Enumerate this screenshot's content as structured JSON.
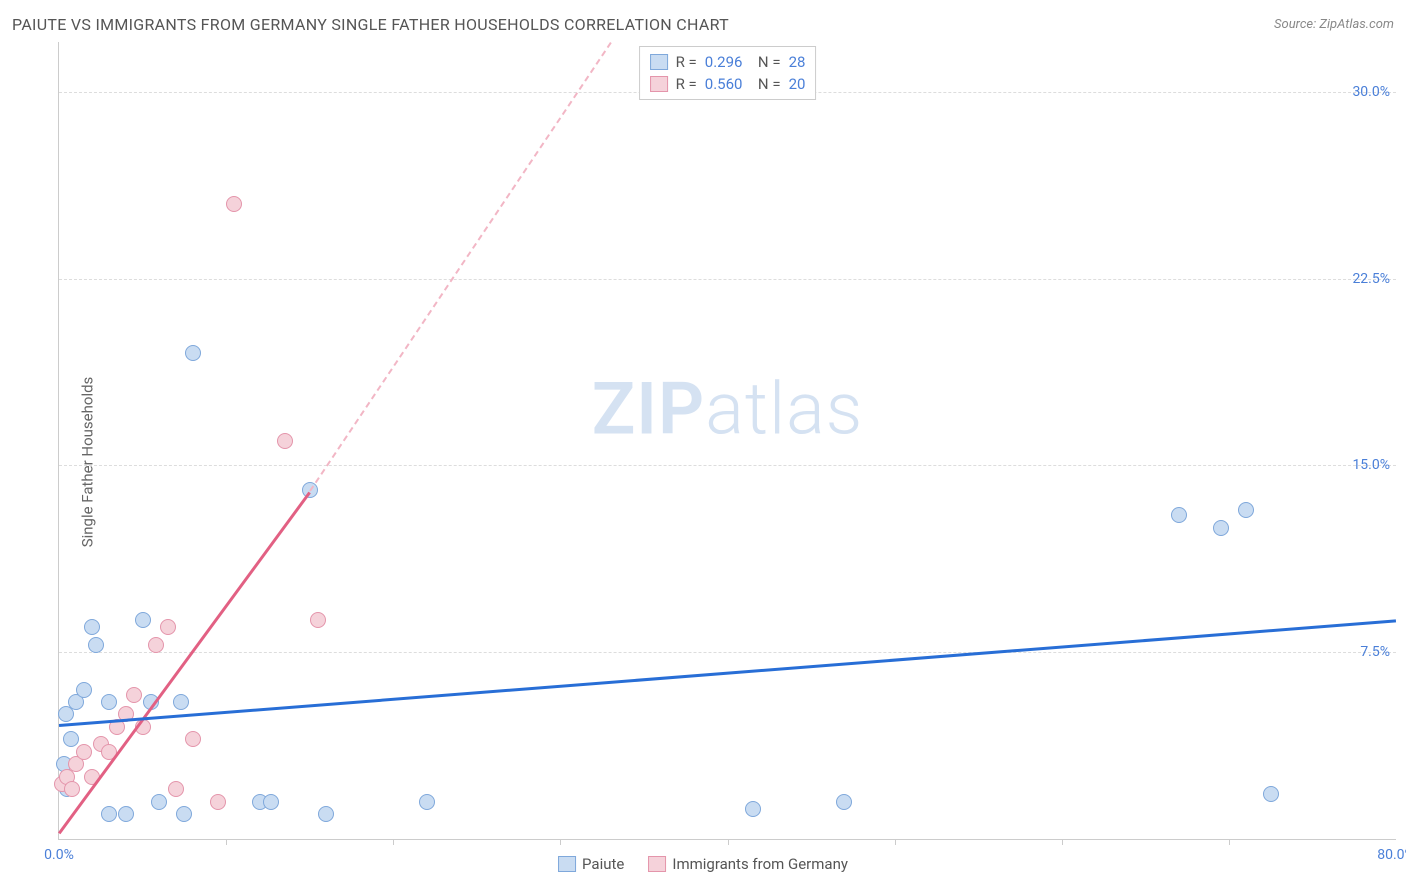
{
  "header": {
    "title": "PAIUTE VS IMMIGRANTS FROM GERMANY SINGLE FATHER HOUSEHOLDS CORRELATION CHART",
    "source": "Source: ZipAtlas.com"
  },
  "chart": {
    "type": "scatter",
    "ylabel": "Single Father Households",
    "xlim": [
      0,
      80
    ],
    "ylim": [
      0,
      32
    ],
    "x_ticks": [
      {
        "pos": 0,
        "label": "0.0%"
      },
      {
        "pos": 80,
        "label": "80.0%"
      }
    ],
    "x_tickmarks": [
      10,
      20,
      30,
      40,
      50,
      60,
      70
    ],
    "y_gridlines": [
      7.5,
      15.0,
      22.5,
      30.0
    ],
    "y_ticks": [
      {
        "pos": 7.5,
        "label": "7.5%"
      },
      {
        "pos": 15.0,
        "label": "15.0%"
      },
      {
        "pos": 22.5,
        "label": "22.5%"
      },
      {
        "pos": 30.0,
        "label": "30.0%"
      }
    ],
    "tick_color": "#4a7fd8",
    "tick_fontsize": 14,
    "grid_color": "#dddddd",
    "axis_color": "#cccccc",
    "background_color": "#ffffff",
    "point_radius": 8,
    "series": [
      {
        "name": "Paiute",
        "fill": "#c9dcf2",
        "stroke": "#7fa8db",
        "R": "0.296",
        "N": "28",
        "trend": {
          "x1": 0,
          "y1": 4.6,
          "x2": 80,
          "y2": 8.8,
          "color": "#286ed6",
          "width": 2.5,
          "dashed": false
        },
        "points": [
          {
            "x": 0.3,
            "y": 3.0
          },
          {
            "x": 0.5,
            "y": 2.0
          },
          {
            "x": 0.4,
            "y": 5.0
          },
          {
            "x": 0.7,
            "y": 4.0
          },
          {
            "x": 1.0,
            "y": 5.5
          },
          {
            "x": 1.5,
            "y": 6.0
          },
          {
            "x": 2.0,
            "y": 8.5
          },
          {
            "x": 2.2,
            "y": 7.8
          },
          {
            "x": 3.0,
            "y": 5.5
          },
          {
            "x": 3.0,
            "y": 1.0
          },
          {
            "x": 4.0,
            "y": 1.0
          },
          {
            "x": 5.0,
            "y": 8.8
          },
          {
            "x": 5.5,
            "y": 5.5
          },
          {
            "x": 6.0,
            "y": 1.5
          },
          {
            "x": 7.5,
            "y": 1.0
          },
          {
            "x": 7.3,
            "y": 5.5
          },
          {
            "x": 8.0,
            "y": 19.5
          },
          {
            "x": 12.0,
            "y": 1.5
          },
          {
            "x": 12.7,
            "y": 1.5
          },
          {
            "x": 15.0,
            "y": 14.0
          },
          {
            "x": 16.0,
            "y": 1.0
          },
          {
            "x": 22.0,
            "y": 1.5
          },
          {
            "x": 41.5,
            "y": 1.2
          },
          {
            "x": 47.0,
            "y": 1.5
          },
          {
            "x": 67.0,
            "y": 13.0
          },
          {
            "x": 69.5,
            "y": 12.5
          },
          {
            "x": 71.0,
            "y": 13.2
          },
          {
            "x": 72.5,
            "y": 1.8
          }
        ]
      },
      {
        "name": "Immigrants from Germany",
        "fill": "#f5d2da",
        "stroke": "#e495ab",
        "R": "0.560",
        "N": "20",
        "trend_solid": {
          "x1": 0,
          "y1": 0.3,
          "x2": 15,
          "y2": 14.0,
          "color": "#e26083",
          "width": 2.5
        },
        "trend_dashed": {
          "x1": 15,
          "y1": 14.0,
          "x2": 33,
          "y2": 32.0,
          "color": "#f2b6c5",
          "width": 2
        },
        "points": [
          {
            "x": 0.2,
            "y": 2.2
          },
          {
            "x": 0.5,
            "y": 2.5
          },
          {
            "x": 0.8,
            "y": 2.0
          },
          {
            "x": 1.0,
            "y": 3.0
          },
          {
            "x": 1.5,
            "y": 3.5
          },
          {
            "x": 2.0,
            "y": 2.5
          },
          {
            "x": 2.5,
            "y": 3.8
          },
          {
            "x": 3.0,
            "y": 3.5
          },
          {
            "x": 3.5,
            "y": 4.5
          },
          {
            "x": 4.0,
            "y": 5.0
          },
          {
            "x": 4.5,
            "y": 5.8
          },
          {
            "x": 5.0,
            "y": 4.5
          },
          {
            "x": 5.8,
            "y": 7.8
          },
          {
            "x": 6.5,
            "y": 8.5
          },
          {
            "x": 7.0,
            "y": 2.0
          },
          {
            "x": 8.0,
            "y": 4.0
          },
          {
            "x": 9.5,
            "y": 1.5
          },
          {
            "x": 10.5,
            "y": 25.5
          },
          {
            "x": 13.5,
            "y": 16.0
          },
          {
            "x": 15.5,
            "y": 8.8
          }
        ]
      }
    ],
    "legend_bottom": [
      {
        "label": "Paiute",
        "fill": "#c9dcf2",
        "stroke": "#7fa8db"
      },
      {
        "label": "Immigrants from Germany",
        "fill": "#f5d2da",
        "stroke": "#e495ab"
      }
    ],
    "legend_top_value_color": "#4a7fd8",
    "watermark": {
      "text_bold": "ZIP",
      "text_light": "atlas",
      "color": "#d5e2f2"
    }
  }
}
